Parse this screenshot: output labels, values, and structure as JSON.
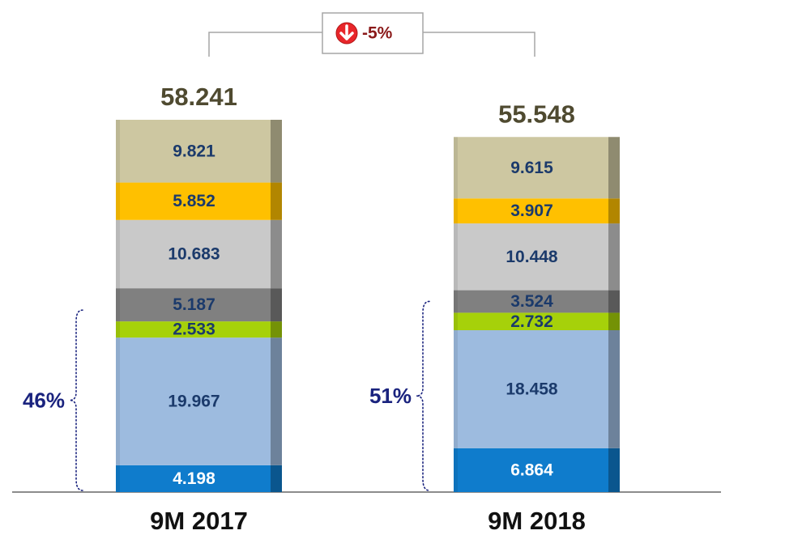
{
  "chart_data": {
    "type": "stacked_bar",
    "categories": [
      "9M 2017",
      "9M 2018"
    ],
    "totals": [
      58.241,
      55.548
    ],
    "series": [
      {
        "color": "#0f7ccc",
        "label_color": "#ffffff",
        "values": [
          4.198,
          6.864
        ]
      },
      {
        "color": "#9dbbdf",
        "values": [
          19.967,
          18.458
        ]
      },
      {
        "color": "#a6d10a",
        "values": [
          2.533,
          2.732
        ]
      },
      {
        "color": "#808080",
        "values": [
          5.187,
          3.524
        ]
      },
      {
        "color": "#c9c9c9",
        "values": [
          10.683,
          10.448
        ]
      },
      {
        "color": "#ffc000",
        "values": [
          5.852,
          3.907
        ]
      },
      {
        "color": "#cdc7a1",
        "values": [
          9.821,
          9.615
        ]
      }
    ],
    "shares": {
      "values": [
        46,
        51
      ],
      "value_labels": [
        "46%",
        "51%"
      ],
      "series_count": 3
    },
    "change": {
      "value": -5,
      "label": "-5%"
    }
  }
}
